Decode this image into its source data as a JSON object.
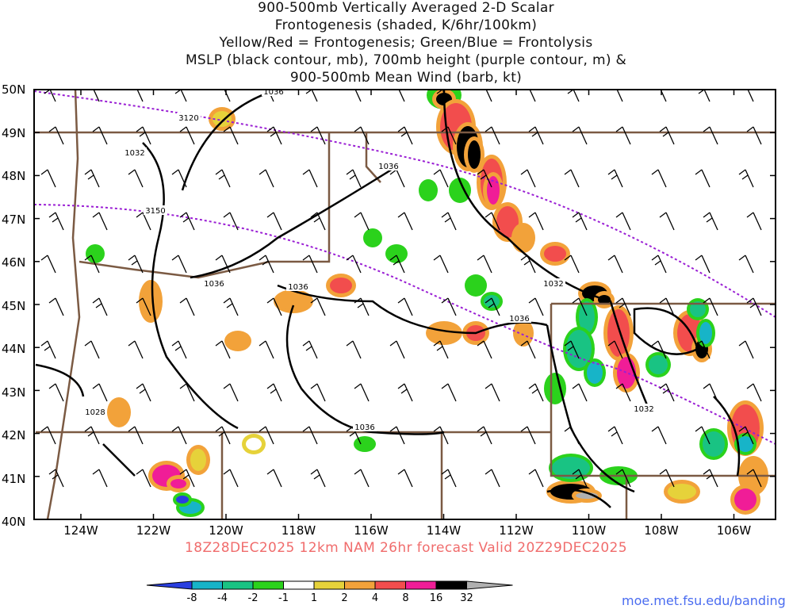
{
  "title": {
    "line1": "900-500mb Vertically Averaged 2-D Scalar",
    "line2": "Frontogenesis (shaded, K/6hr/100km)",
    "line3": "Yellow/Red = Frontogenesis;  Green/Blue = Frontolysis",
    "line4": "MSLP (black contour, mb), 700mb height (purple contour, m) &",
    "line5": "900-500mb Mean Wind (barb, kt)"
  },
  "lat_labels": [
    "50N",
    "49N",
    "48N",
    "47N",
    "46N",
    "45N",
    "44N",
    "43N",
    "42N",
    "41N",
    "40N"
  ],
  "lon_labels": [
    "124W",
    "122W",
    "120W",
    "118W",
    "116W",
    "114W",
    "112W",
    "110W",
    "108W",
    "106W"
  ],
  "contour_labels": {
    "mslp": [
      "1036",
      "1032",
      "1036",
      "1036",
      "1036",
      "1032",
      "1036",
      "1032",
      "1028",
      "1036"
    ],
    "height": [
      "3120",
      "3150"
    ]
  },
  "valid_line": "18Z28DEC2025 12km NAM 26hr forecast Valid 20Z29DEC2025",
  "colorbar": {
    "labels": [
      "-8",
      "-4",
      "-2",
      "-1",
      "1",
      "2",
      "4",
      "8",
      "16",
      "32"
    ],
    "colors": [
      "#2a3fe0",
      "#17b4c8",
      "#19c383",
      "#2bd21c",
      "#ffffff",
      "#e6d23a",
      "#f2a23a",
      "#f24d4d",
      "#f01d97",
      "#000000",
      "#b0b0b0"
    ]
  },
  "url": "moe.met.fsu.edu/banding",
  "colors": {
    "border": "#7b5a43",
    "mslp": "#000000",
    "height": "#9a1fd4",
    "valid_text": "#f06c6c"
  }
}
